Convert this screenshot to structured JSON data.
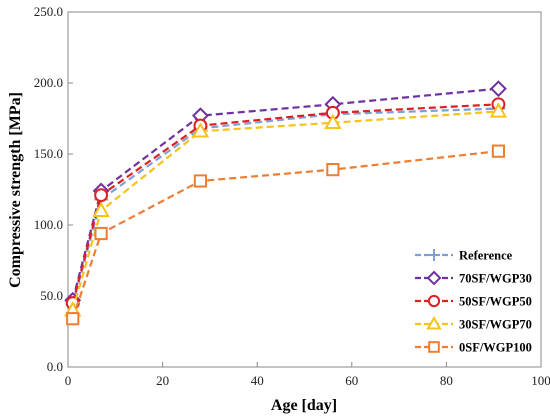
{
  "chart_data": {
    "type": "line",
    "xlabel": "Age [day]",
    "ylabel": "Compressive strength [MPa]",
    "xlim": [
      0,
      100
    ],
    "ylim": [
      0,
      250
    ],
    "xticks": [
      "0",
      "20",
      "40",
      "60",
      "80",
      "100"
    ],
    "yticks": [
      "0.0",
      "50.0",
      "100.0",
      "150.0",
      "200.0",
      "250.0"
    ],
    "grid": false,
    "legend_position": "bottom-right",
    "series": [
      {
        "name": "Reference",
        "color": "#7f9fd9",
        "marker": "plus",
        "x": [
          1,
          7,
          28,
          56,
          91
        ],
        "y": [
          44,
          118,
          168,
          178,
          182
        ]
      },
      {
        "name": "70SF/WGP30",
        "color": "#7030a0",
        "marker": "diamond",
        "x": [
          1,
          7,
          28,
          56,
          91
        ],
        "y": [
          47,
          124,
          177,
          185,
          196
        ]
      },
      {
        "name": "50SF/WGP50",
        "color": "#e02020",
        "marker": "circle",
        "x": [
          1,
          7,
          28,
          56,
          91
        ],
        "y": [
          45,
          121,
          170,
          179,
          185
        ]
      },
      {
        "name": "30SF/WGP70",
        "color": "#f7c21b",
        "marker": "triangle",
        "x": [
          1,
          7,
          28,
          56,
          91
        ],
        "y": [
          40,
          110,
          166,
          172,
          180
        ]
      },
      {
        "name": "0SF/WGP100",
        "color": "#ed7d31",
        "marker": "square",
        "x": [
          1,
          7,
          28,
          56,
          91
        ],
        "y": [
          34,
          94,
          131,
          139,
          152
        ]
      }
    ]
  }
}
